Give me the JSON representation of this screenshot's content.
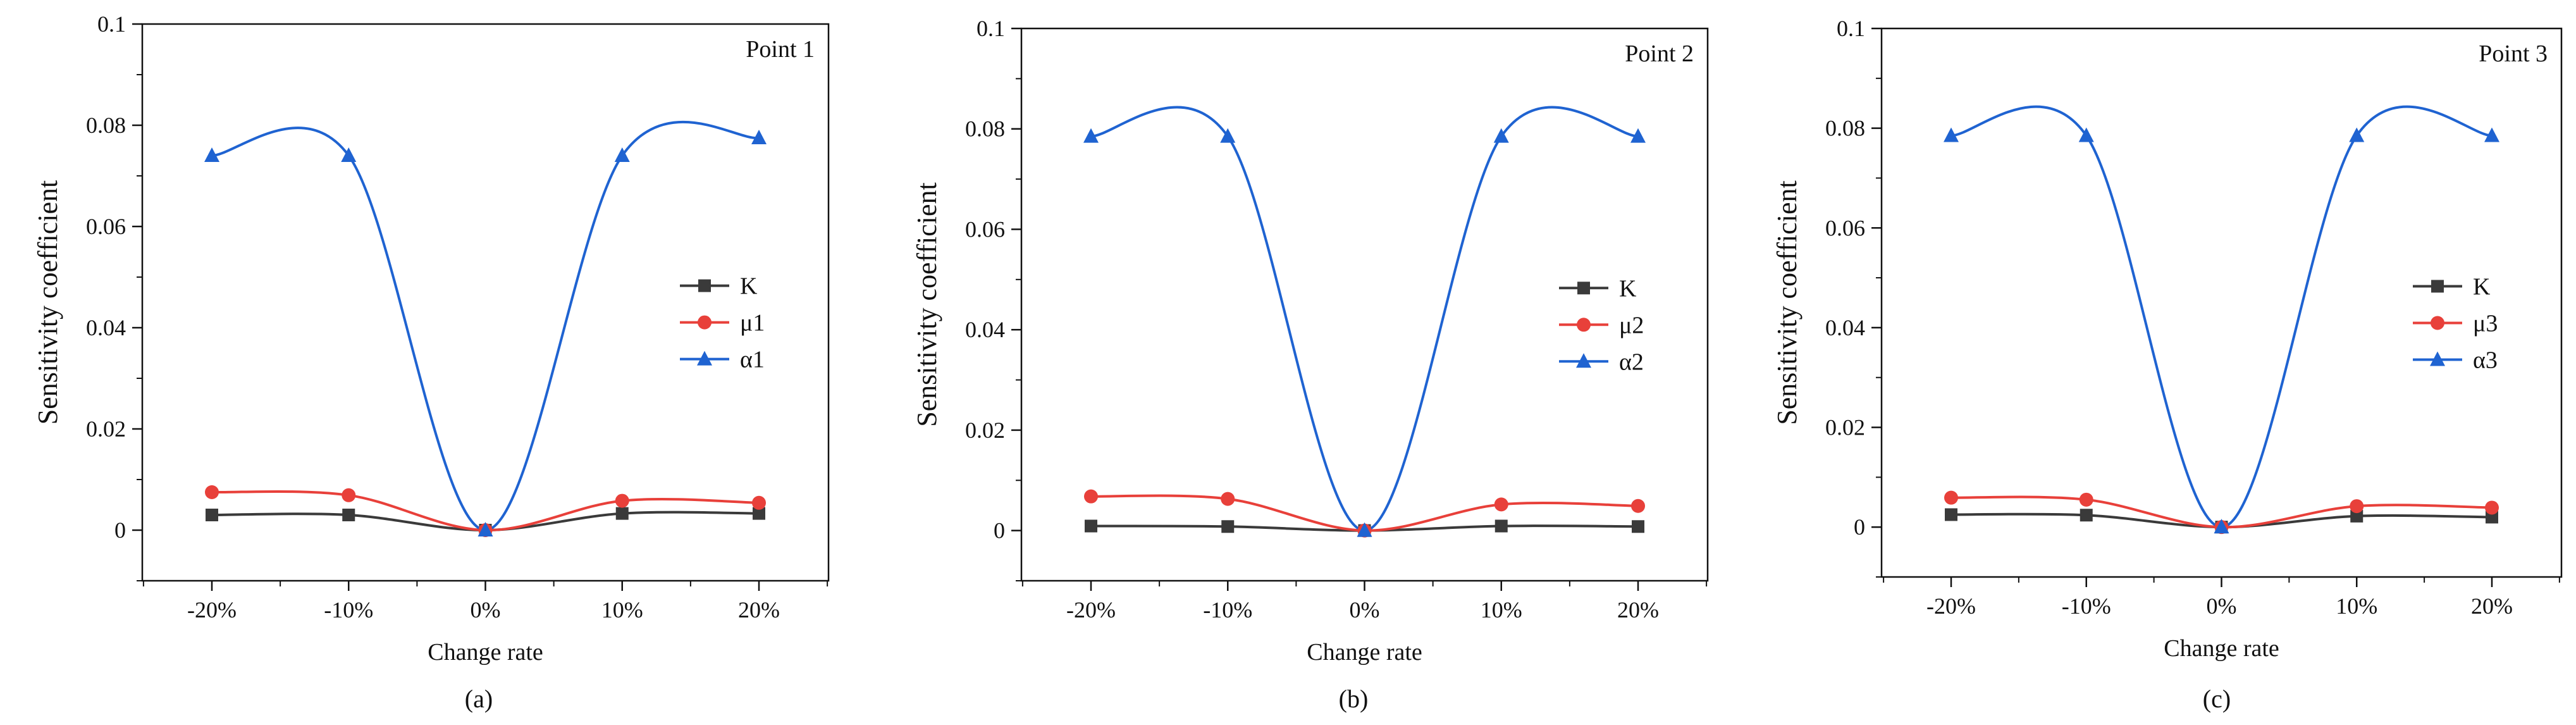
{
  "figure": {
    "panels": [
      {
        "panel_label": "(a)"
      },
      {
        "panel_label": "(b)"
      },
      {
        "panel_label": "(c)"
      }
    ]
  },
  "chart_data": [
    {
      "type": "line",
      "panel_label": "(a)",
      "annotation": "Point 1",
      "title": "",
      "xlabel": "Change rate",
      "ylabel": "Sensitivity coefficient",
      "categories": [
        "-20%",
        "-10%",
        "0%",
        "10%",
        "20%"
      ],
      "ylim": [
        -0.01,
        0.1
      ],
      "yticks": [
        "0",
        "0.02",
        "0.04",
        "0.06",
        "0.08",
        "0.1"
      ],
      "smooth": true,
      "legend_position": "center-right",
      "series": [
        {
          "name": "K",
          "marker": "square",
          "color": "#3a3a3a",
          "values": [
            0.003,
            0.003,
            0.0,
            0.0033,
            0.0033
          ]
        },
        {
          "name": "μ1",
          "marker": "circle",
          "color": "#e8403a",
          "values": [
            0.0075,
            0.0069,
            0.0,
            0.0058,
            0.0054
          ]
        },
        {
          "name": "α1",
          "marker": "triangle",
          "color": "#1f63d1",
          "values": [
            0.074,
            0.074,
            0.0,
            0.074,
            0.0775
          ]
        }
      ]
    },
    {
      "type": "line",
      "panel_label": "(b)",
      "annotation": "Point 2",
      "title": "",
      "xlabel": "Change rate",
      "ylabel": "Sensitivity coefficient",
      "categories": [
        "-20%",
        "-10%",
        "0%",
        "10%",
        "20%"
      ],
      "ylim": [
        -0.01,
        0.1
      ],
      "yticks": [
        "0",
        "0.02",
        "0.04",
        "0.06",
        "0.08",
        "0.1"
      ],
      "smooth": true,
      "legend_position": "center-right",
      "series": [
        {
          "name": "K",
          "marker": "square",
          "color": "#3a3a3a",
          "values": [
            0.0009,
            0.0008,
            0.0,
            0.0009,
            0.0008
          ]
        },
        {
          "name": "μ2",
          "marker": "circle",
          "color": "#e8403a",
          "values": [
            0.0068,
            0.0063,
            0.0,
            0.0052,
            0.0049
          ]
        },
        {
          "name": "α2",
          "marker": "triangle",
          "color": "#1f63d1",
          "values": [
            0.0785,
            0.0785,
            0.0,
            0.0785,
            0.0785
          ]
        }
      ]
    },
    {
      "type": "line",
      "panel_label": "(c)",
      "annotation": "Point 3",
      "title": "",
      "xlabel": "Change rate",
      "ylabel": "Sensitivity coefficient",
      "categories": [
        "-20%",
        "-10%",
        "0%",
        "10%",
        "20%"
      ],
      "ylim": [
        -0.01,
        0.1
      ],
      "yticks": [
        "0",
        "0.02",
        "0.04",
        "0.06",
        "0.08",
        "0.1"
      ],
      "smooth": true,
      "legend_position": "center-right",
      "series": [
        {
          "name": "K",
          "marker": "square",
          "color": "#3a3a3a",
          "values": [
            0.0025,
            0.0024,
            0.0,
            0.0022,
            0.002
          ]
        },
        {
          "name": "μ3",
          "marker": "circle",
          "color": "#e8403a",
          "values": [
            0.0059,
            0.0055,
            0.0,
            0.0042,
            0.0039
          ]
        },
        {
          "name": "α3",
          "marker": "triangle",
          "color": "#1f63d1",
          "values": [
            0.0785,
            0.0785,
            0.0,
            0.0785,
            0.0785
          ]
        }
      ]
    }
  ]
}
